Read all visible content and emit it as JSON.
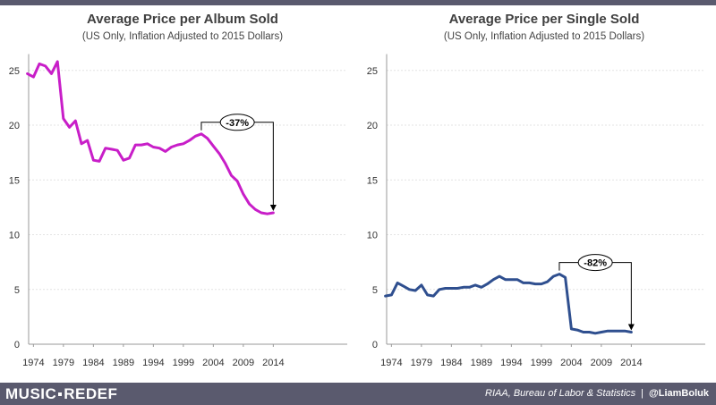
{
  "chart_data": [
    {
      "type": "line",
      "title": "Average Price per Album Sold",
      "subtitle": "(US Only, Inflation Adjusted to 2015 Dollars)",
      "x": [
        1973,
        1974,
        1975,
        1976,
        1977,
        1978,
        1979,
        1980,
        1981,
        1982,
        1983,
        1984,
        1985,
        1986,
        1987,
        1988,
        1989,
        1990,
        1991,
        1992,
        1993,
        1994,
        1995,
        1996,
        1997,
        1998,
        1999,
        2000,
        2001,
        2002,
        2003,
        2004,
        2005,
        2006,
        2007,
        2008,
        2009,
        2010,
        2011,
        2012,
        2013,
        2014
      ],
      "series": [
        {
          "color": "#c81ec8",
          "values": [
            24.7,
            24.4,
            25.6,
            25.4,
            24.7,
            25.8,
            20.6,
            19.8,
            20.4,
            18.3,
            18.6,
            16.8,
            16.7,
            17.9,
            17.8,
            17.7,
            16.8,
            17.0,
            18.2,
            18.2,
            18.3,
            18.0,
            17.9,
            17.6,
            18.0,
            18.2,
            18.3,
            18.6,
            19.0,
            19.2,
            18.8,
            18.1,
            17.4,
            16.5,
            15.4,
            14.9,
            13.7,
            12.8,
            12.3,
            12.0,
            11.9,
            12.0
          ]
        }
      ],
      "xticks": [
        "1974",
        "1979",
        "1984",
        "1989",
        "1994",
        "1999",
        "2004",
        "2009",
        "2014"
      ],
      "yticks": [
        "0",
        "5",
        "10",
        "15",
        "20",
        "25"
      ],
      "ylim": [
        0,
        26
      ],
      "grid": true,
      "annotation": {
        "label": "-37%",
        "from_x": 2002,
        "to_x": 2014,
        "from_y": 19.2,
        "to_y": 12.0
      }
    },
    {
      "type": "line",
      "title": "Average Price per Single Sold",
      "subtitle": "(US Only, Inflation Adjusted to 2015 Dollars)",
      "x": [
        1973,
        1974,
        1975,
        1976,
        1977,
        1978,
        1979,
        1980,
        1981,
        1982,
        1983,
        1984,
        1985,
        1986,
        1987,
        1988,
        1989,
        1990,
        1991,
        1992,
        1993,
        1994,
        1995,
        1996,
        1997,
        1998,
        1999,
        2000,
        2001,
        2002,
        2003,
        2004,
        2005,
        2006,
        2007,
        2008,
        2009,
        2010,
        2011,
        2012,
        2013,
        2014
      ],
      "series": [
        {
          "color": "#2f4f8f",
          "values": [
            4.4,
            4.5,
            5.6,
            5.3,
            5.0,
            4.9,
            5.4,
            4.5,
            4.4,
            5.0,
            5.1,
            5.1,
            5.1,
            5.2,
            5.2,
            5.4,
            5.2,
            5.5,
            5.9,
            6.2,
            5.9,
            5.9,
            5.9,
            5.6,
            5.6,
            5.5,
            5.5,
            5.7,
            6.2,
            6.4,
            6.1,
            1.4,
            1.3,
            1.1,
            1.1,
            1.0,
            1.1,
            1.2,
            1.2,
            1.2,
            1.2,
            1.1
          ]
        }
      ],
      "xticks": [
        "1974",
        "1979",
        "1984",
        "1989",
        "1994",
        "1999",
        "2004",
        "2009",
        "2014"
      ],
      "yticks": [
        "0",
        "5",
        "10",
        "15",
        "20",
        "25"
      ],
      "ylim": [
        0,
        26
      ],
      "grid": true,
      "annotation": {
        "label": "-82%",
        "from_x": 2002,
        "to_x": 2014,
        "from_y": 6.4,
        "to_y": 1.1
      }
    }
  ],
  "footer": {
    "logo_left": "MUSIC",
    "logo_right": "REDEF",
    "source": "RIAA, Bureau of Labor & Statistics",
    "separator": "|",
    "handle": "@LiamBoluk"
  },
  "colors": {
    "bar": "#5a5a6e",
    "grid": "#e3e3e3",
    "axis": "#999999"
  }
}
